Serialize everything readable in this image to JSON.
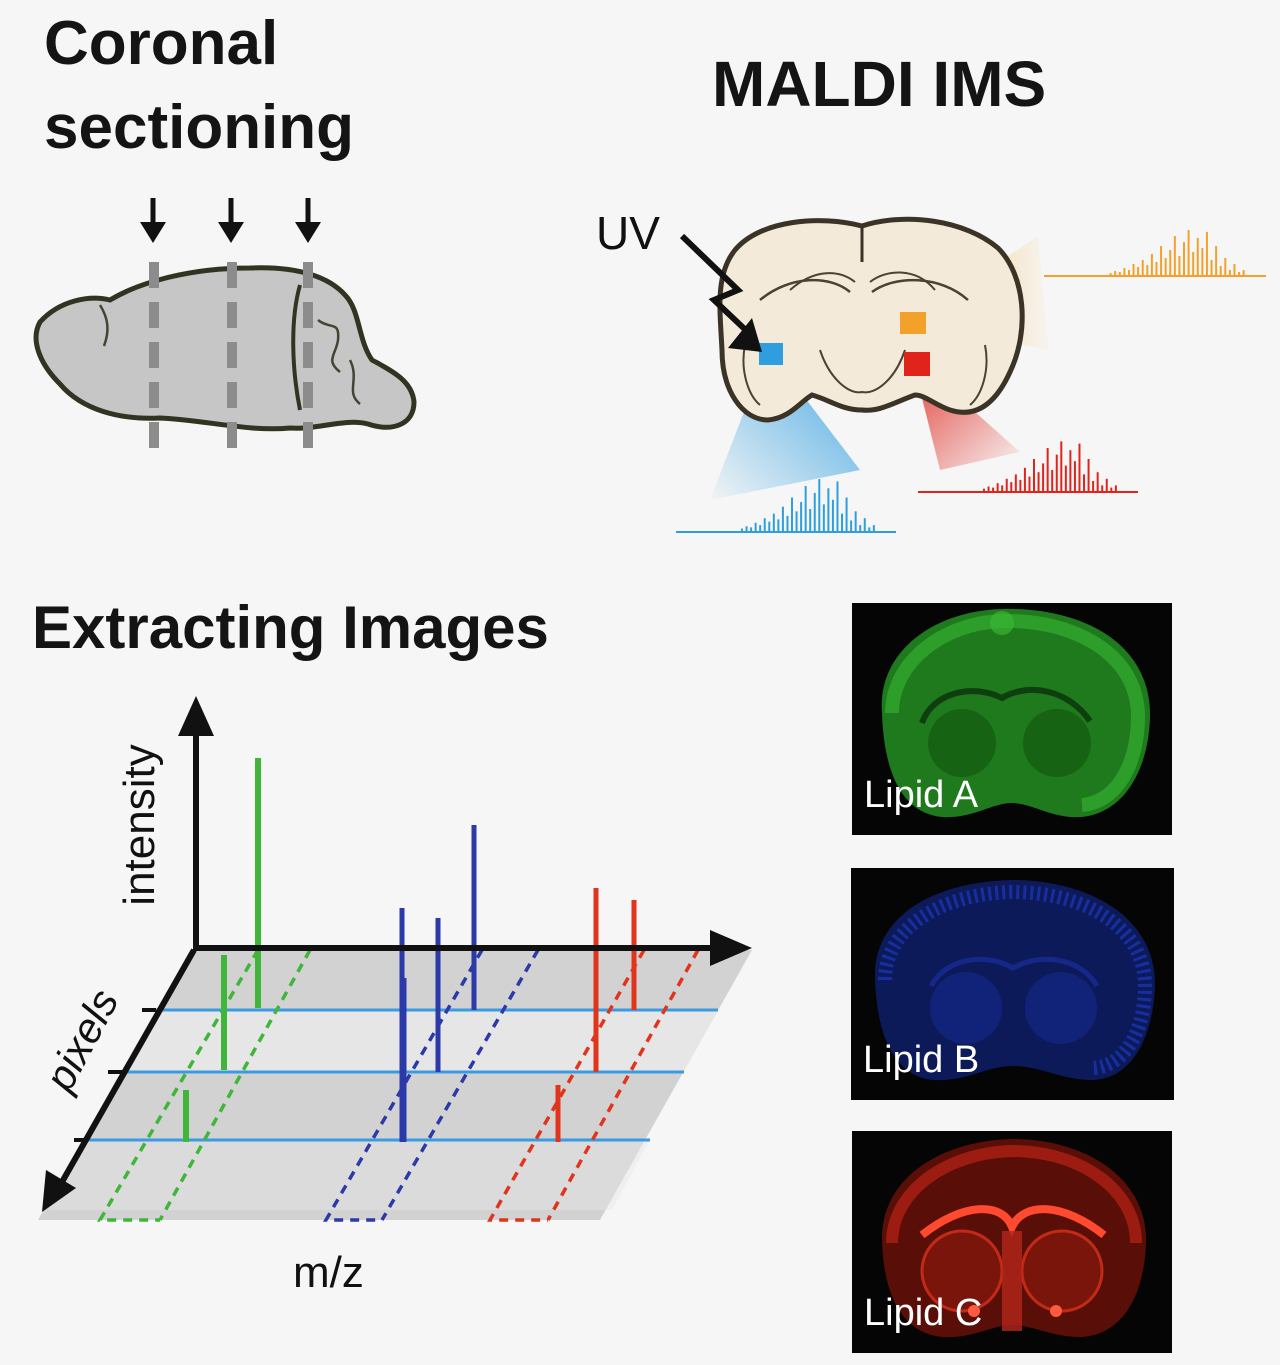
{
  "titles": {
    "coronal": "Coronal sectioning",
    "maldi": "MALDI IMS",
    "extracting": "Extracting Images"
  },
  "labels": {
    "uv": "UV",
    "mz": "m/z",
    "intensity": "intensity",
    "pixels": "pixels"
  },
  "lipids": [
    {
      "label": "Lipid A",
      "color": "#2fa82a"
    },
    {
      "label": "Lipid B",
      "color": "#2340d8"
    },
    {
      "label": "Lipid C",
      "color": "#e02a1a"
    }
  ],
  "colors": {
    "spectrum_orange": "#f2a12a",
    "spectrum_red": "#e0241c",
    "spectrum_blue": "#2f9ee0",
    "peak_green": "#3fb53a",
    "peak_blue": "#2b3aa8",
    "peak_red": "#e0341c",
    "pixel_line": "#3a9be0",
    "brain_gray": "#c6c6c6",
    "brain_section": "#f3ead9"
  }
}
